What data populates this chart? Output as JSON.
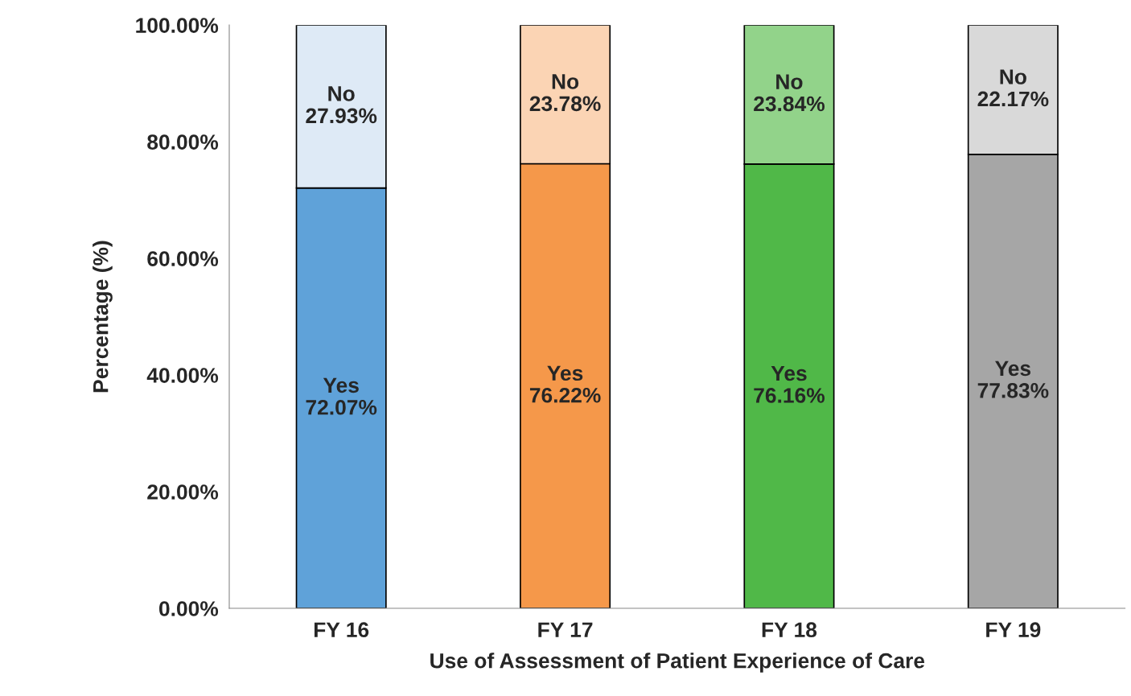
{
  "chart_data": {
    "type": "bar",
    "stacked": true,
    "xlabel": "Use of Assessment of Patient Experience of Care",
    "ylabel": "Percentage (%)",
    "categories": [
      "FY 16",
      "FY 17",
      "FY 18",
      "FY 19"
    ],
    "series": [
      {
        "name": "Yes",
        "colors": [
          "#5fa2d9",
          "#f5984a",
          "#50b848",
          "#a6a6a6"
        ],
        "values": [
          72.07,
          76.22,
          76.16,
          77.83
        ],
        "value_labels": [
          "72.07%",
          "76.22%",
          "76.16%",
          "77.83%"
        ]
      },
      {
        "name": "No",
        "colors": [
          "#deeaf6",
          "#fbd4b4",
          "#92d38a",
          "#d9d9d9"
        ],
        "values": [
          27.93,
          23.78,
          23.84,
          22.17
        ],
        "value_labels": [
          "27.93%",
          "23.78%",
          "23.84%",
          "22.17%"
        ]
      }
    ],
    "ylim": [
      0,
      100
    ],
    "yticks": [
      {
        "value": 0,
        "label": "0.00%"
      },
      {
        "value": 20,
        "label": "20.00%"
      },
      {
        "value": 40,
        "label": "40.00%"
      },
      {
        "value": 60,
        "label": "60.00%"
      },
      {
        "value": 80,
        "label": "80.00%"
      },
      {
        "value": 100,
        "label": "100.00%"
      }
    ],
    "grid": false,
    "legend": false
  }
}
